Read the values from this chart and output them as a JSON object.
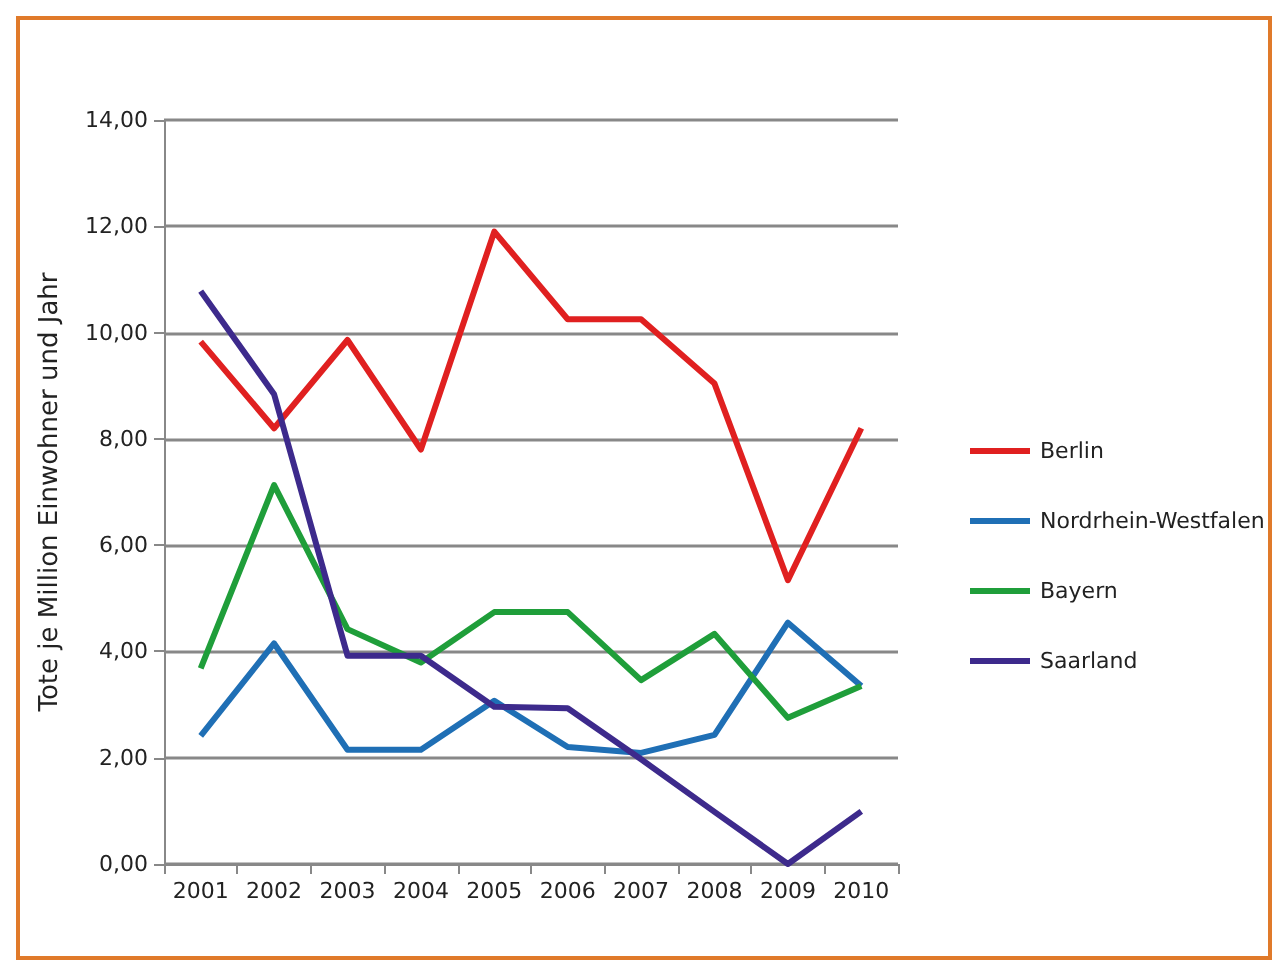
{
  "chart_data": {
    "type": "line",
    "ylabel": "Tote je Million Einwohner und Jahr",
    "categories": [
      "2001",
      "2002",
      "2003",
      "2004",
      "2005",
      "2006",
      "2007",
      "2008",
      "2009",
      "2010"
    ],
    "series": [
      {
        "name": "Berlin",
        "color": "#e02020",
        "values": [
          9.83,
          8.2,
          9.86,
          7.8,
          11.9,
          10.25,
          10.25,
          9.04,
          5.34,
          8.2
        ]
      },
      {
        "name": "Nordrhein-Westfalen",
        "color": "#1f6fb5",
        "values": [
          2.41,
          4.15,
          2.15,
          2.15,
          3.07,
          2.2,
          2.09,
          2.43,
          4.54,
          3.35
        ]
      },
      {
        "name": "Bayern",
        "color": "#1f9e3a",
        "values": [
          3.68,
          7.13,
          4.42,
          3.79,
          4.74,
          4.74,
          3.46,
          4.33,
          2.75,
          3.35
        ]
      },
      {
        "name": "Saarland",
        "color": "#3d2a8c",
        "values": [
          10.78,
          8.84,
          3.92,
          3.92,
          2.96,
          2.93,
          1.97,
          0.98,
          0,
          0.99
        ]
      }
    ],
    "ylim": [
      0,
      14
    ],
    "yticks": [
      {
        "value": 0,
        "label": "0,00"
      },
      {
        "value": 2,
        "label": "2,00"
      },
      {
        "value": 4,
        "label": "4,00"
      },
      {
        "value": 6,
        "label": "6,00"
      },
      {
        "value": 8,
        "label": "8,00"
      },
      {
        "value": 10,
        "label": "10,00"
      },
      {
        "value": 12,
        "label": "12,00"
      },
      {
        "value": 14,
        "label": "14,00"
      }
    ],
    "grid": "y",
    "legend": "right",
    "marker": "none",
    "line_style": "solid"
  }
}
